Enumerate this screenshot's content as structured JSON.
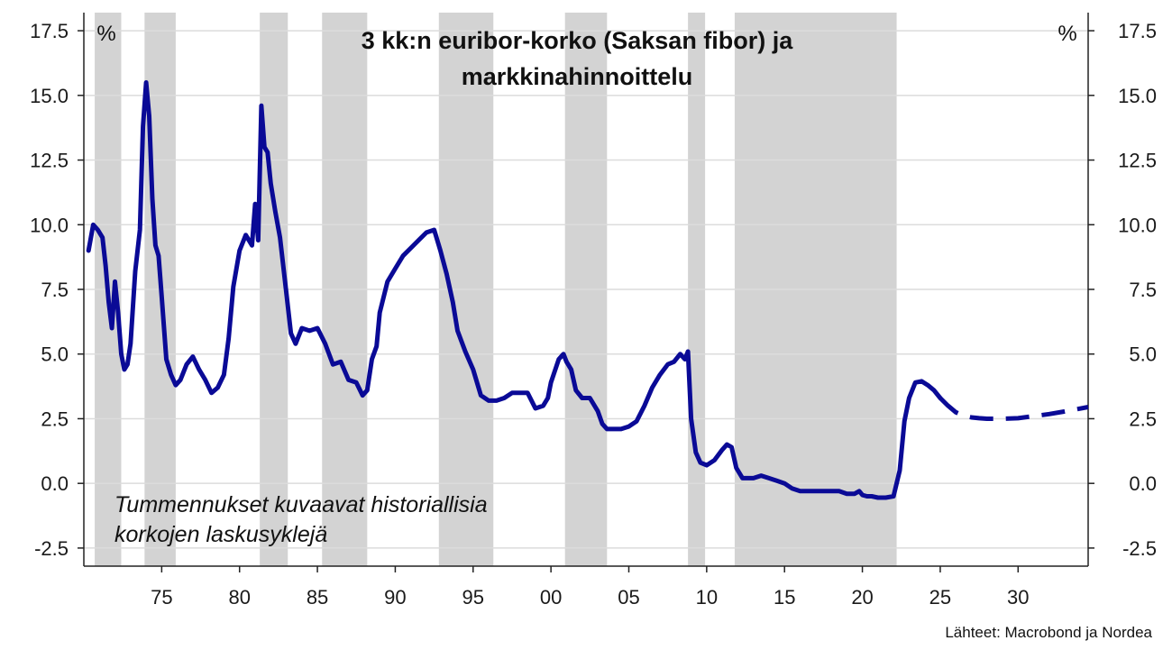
{
  "chart_data": {
    "type": "line",
    "title_lines": [
      "3 kk:n euribor-korko (Saksan fibor) ja",
      "markkinahinnoittelu"
    ],
    "y_unit_left": "%",
    "y_unit_right": "%",
    "xlabel": "",
    "ylabel": "",
    "xlim": [
      1970,
      2034.5
    ],
    "ylim": [
      -3.2,
      18.2
    ],
    "x_ticks": [
      {
        "value": 1975,
        "label": "75"
      },
      {
        "value": 1980,
        "label": "80"
      },
      {
        "value": 1985,
        "label": "85"
      },
      {
        "value": 1990,
        "label": "90"
      },
      {
        "value": 1995,
        "label": "95"
      },
      {
        "value": 2000,
        "label": "00"
      },
      {
        "value": 2005,
        "label": "05"
      },
      {
        "value": 2010,
        "label": "10"
      },
      {
        "value": 2015,
        "label": "15"
      },
      {
        "value": 2020,
        "label": "20"
      },
      {
        "value": 2025,
        "label": "25"
      },
      {
        "value": 2030,
        "label": "30"
      }
    ],
    "y_ticks": [
      {
        "value": -2.5,
        "label": "-2.5"
      },
      {
        "value": 0.0,
        "label": "0.0"
      },
      {
        "value": 2.5,
        "label": "2.5"
      },
      {
        "value": 5.0,
        "label": "5.0"
      },
      {
        "value": 7.5,
        "label": "7.5"
      },
      {
        "value": 10.0,
        "label": "10.0"
      },
      {
        "value": 12.5,
        "label": "12.5"
      },
      {
        "value": 15.0,
        "label": "15.0"
      },
      {
        "value": 17.5,
        "label": "17.5"
      }
    ],
    "grid": "horizontal",
    "shaded_periods": [
      [
        1970.7,
        1972.4
      ],
      [
        1973.9,
        1975.9
      ],
      [
        1981.3,
        1983.1
      ],
      [
        1985.3,
        1988.2
      ],
      [
        1992.8,
        1996.3
      ],
      [
        2000.9,
        2003.6
      ],
      [
        2008.8,
        2009.9
      ],
      [
        2011.8,
        2022.2
      ]
    ],
    "series": [
      {
        "style": "solid",
        "color": "#0a0a96",
        "x": [
          1970.3,
          1970.6,
          1970.9,
          1971.2,
          1971.4,
          1971.6,
          1971.8,
          1972.0,
          1972.2,
          1972.4,
          1972.6,
          1972.8,
          1973.0,
          1973.3,
          1973.6,
          1973.8,
          1974.0,
          1974.2,
          1974.4,
          1974.6,
          1974.8,
          1975.0,
          1975.3,
          1975.6,
          1975.9,
          1976.2,
          1976.6,
          1977.0,
          1977.4,
          1977.8,
          1978.2,
          1978.6,
          1979.0,
          1979.3,
          1979.6,
          1980.0,
          1980.4,
          1980.8,
          1981.0,
          1981.2,
          1981.4,
          1981.6,
          1981.8,
          1982.0,
          1982.3,
          1982.6,
          1983.0,
          1983.3,
          1983.6,
          1984.0,
          1984.5,
          1985.0,
          1985.5,
          1986.0,
          1986.5,
          1987.0,
          1987.5,
          1987.9,
          1988.2,
          1988.5,
          1988.8,
          1989.0,
          1989.5,
          1990.0,
          1990.5,
          1991.0,
          1991.5,
          1992.0,
          1992.5,
          1992.9,
          1993.3,
          1993.7,
          1994.0,
          1994.5,
          1995.0,
          1995.5,
          1996.0,
          1996.5,
          1997.0,
          1997.5,
          1998.0,
          1998.5,
          1999.0,
          1999.5,
          1999.8,
          2000.0,
          2000.5,
          2000.8,
          2001.0,
          2001.3,
          2001.6,
          2002.0,
          2002.5,
          2003.0,
          2003.3,
          2003.6,
          2004.0,
          2004.5,
          2005.0,
          2005.5,
          2006.0,
          2006.5,
          2007.0,
          2007.5,
          2007.9,
          2008.3,
          2008.6,
          2008.8,
          2009.0,
          2009.3,
          2009.6,
          2010.0,
          2010.5,
          2011.0,
          2011.3,
          2011.6,
          2011.9,
          2012.3,
          2012.6,
          2013.0,
          2013.5,
          2014.0,
          2014.5,
          2015.0,
          2015.5,
          2016.0,
          2016.5,
          2017.0,
          2017.5,
          2018.0,
          2018.5,
          2019.0,
          2019.5,
          2019.8,
          2020.0,
          2020.3,
          2020.6,
          2021.0,
          2021.5,
          2022.0,
          2022.4,
          2022.7,
          2023.0,
          2023.4,
          2023.8,
          2024.2,
          2024.6,
          2025.0
        ],
        "y": [
          9.0,
          10.0,
          9.8,
          9.5,
          8.4,
          7.0,
          6.0,
          7.8,
          6.6,
          5.0,
          4.4,
          4.6,
          5.4,
          8.2,
          9.8,
          13.8,
          15.5,
          14.2,
          11.0,
          9.2,
          8.8,
          7.2,
          4.8,
          4.2,
          3.8,
          4.0,
          4.6,
          4.9,
          4.4,
          4.0,
          3.5,
          3.7,
          4.2,
          5.6,
          7.6,
          9.0,
          9.6,
          9.2,
          10.8,
          9.4,
          14.6,
          13.0,
          12.8,
          11.6,
          10.5,
          9.5,
          7.4,
          5.8,
          5.4,
          6.0,
          5.9,
          6.0,
          5.4,
          4.6,
          4.7,
          4.0,
          3.9,
          3.4,
          3.6,
          4.8,
          5.3,
          6.6,
          7.8,
          8.3,
          8.8,
          9.1,
          9.4,
          9.7,
          9.8,
          9.0,
          8.1,
          7.0,
          5.9,
          5.1,
          4.4,
          3.4,
          3.2,
          3.2,
          3.3,
          3.5,
          3.5,
          3.5,
          2.9,
          3.0,
          3.3,
          3.9,
          4.8,
          5.0,
          4.7,
          4.4,
          3.6,
          3.3,
          3.3,
          2.8,
          2.3,
          2.1,
          2.1,
          2.1,
          2.2,
          2.4,
          3.0,
          3.7,
          4.2,
          4.6,
          4.7,
          5.0,
          4.8,
          5.1,
          2.5,
          1.2,
          0.8,
          0.7,
          0.9,
          1.3,
          1.5,
          1.4,
          0.6,
          0.2,
          0.2,
          0.2,
          0.3,
          0.2,
          0.1,
          0.0,
          -0.2,
          -0.3,
          -0.3,
          -0.3,
          -0.3,
          -0.3,
          -0.3,
          -0.4,
          -0.4,
          -0.3,
          -0.45,
          -0.5,
          -0.5,
          -0.55,
          -0.55,
          -0.5,
          0.5,
          2.4,
          3.3,
          3.9,
          3.95,
          3.8,
          3.6,
          3.3
        ]
      },
      {
        "style": "dashed",
        "color": "#0a0a96",
        "x": [
          2025.0,
          2025.5,
          2026.0,
          2026.5,
          2027.0,
          2027.5,
          2028.0,
          2029.0,
          2030.0,
          2031.0,
          2032.0,
          2033.0,
          2034.5
        ],
        "y": [
          3.3,
          3.0,
          2.75,
          2.62,
          2.55,
          2.52,
          2.5,
          2.5,
          2.52,
          2.6,
          2.68,
          2.78,
          2.95
        ]
      }
    ],
    "annotation_lines": [
      "Tummennukset kuvaavat historiallisia",
      "korkojen laskusyklejä"
    ],
    "source": "Lähteet: Macrobond ja Nordea",
    "colors": {
      "shade": "#d3d3d3",
      "line": "#0a0a96",
      "grid": "#dcdcdc",
      "axis": "#222222"
    }
  }
}
